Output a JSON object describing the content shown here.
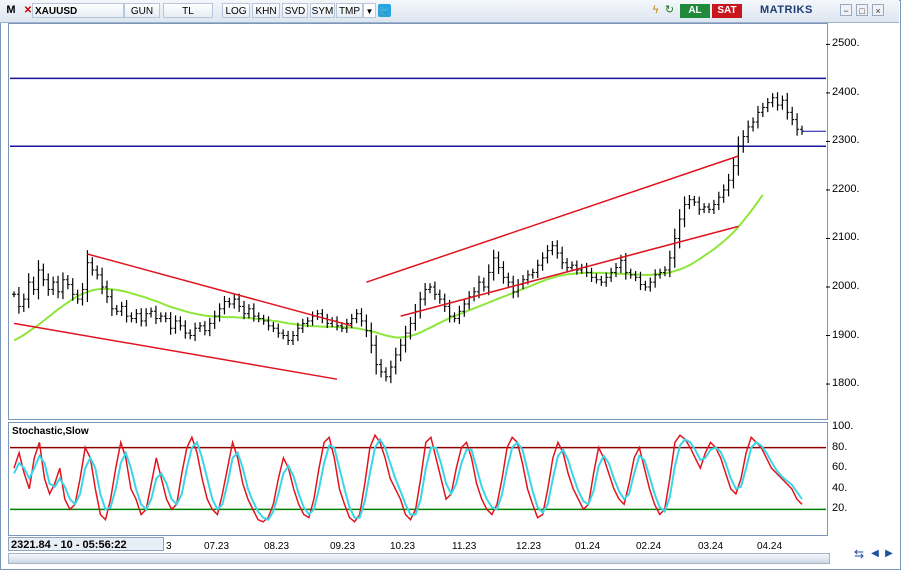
{
  "toolbar": {
    "menu_label": "M",
    "close_glyph": "✕",
    "symbol": "XAUUSD",
    "buttons": [
      "GUN",
      "TL",
      "LOG",
      "KHN",
      "SVD",
      "SYM",
      "TMP"
    ],
    "buy_label": "AL",
    "sell_label": "SAT",
    "brand": "MATRIKS",
    "window_controls": [
      "−",
      "□",
      "×"
    ],
    "icons": [
      "dropdown-icon",
      "twitter-icon",
      "lightning-icon",
      "refresh-icon"
    ]
  },
  "stochastic_title": "Stochastic,Slow",
  "status": {
    "price_readout": "2321.84 - 10 - 05:56:22"
  },
  "colors": {
    "candles": "#000000",
    "trend_red": "#e0141e",
    "horizontal_blue": "#1414a0",
    "moving_average": "#8ee63a",
    "stoch_k": "#e0141e",
    "stoch_d": "#3ad6e8",
    "stoch_upper": "#8b0000",
    "stoch_lower": "#008000",
    "buy": "#1f8a3a",
    "sell": "#c8161d"
  },
  "chart_data": {
    "type": "candlestick",
    "symbol": "XAUUSD",
    "x_labels": [
      "3",
      "07.23",
      "08.23",
      "09.23",
      "10.23",
      "11.23",
      "12.23",
      "01.24",
      "02.24",
      "03.24",
      "04.24"
    ],
    "price_axis": {
      "ticks": [
        1800,
        1900,
        2000,
        2100,
        2200,
        2300,
        2400,
        2500
      ],
      "tick_labels": [
        "1800.",
        "1900.",
        "2000.",
        "2100.",
        "2200.",
        "2300.",
        "2400.",
        "2500."
      ],
      "range": [
        1730,
        2540
      ]
    },
    "close_series": [
      1985,
      1960,
      1975,
      2010,
      1995,
      2035,
      2015,
      1995,
      2010,
      1990,
      2015,
      2005,
      1985,
      1975,
      1995,
      2050,
      2035,
      2025,
      2000,
      1980,
      1955,
      1950,
      1960,
      1940,
      1935,
      1945,
      1930,
      1945,
      1950,
      1935,
      1940,
      1935,
      1915,
      1930,
      1920,
      1905,
      1900,
      1915,
      1920,
      1910,
      1925,
      1940,
      1955,
      1970,
      1965,
      1975,
      1960,
      1945,
      1955,
      1940,
      1935,
      1930,
      1920,
      1915,
      1905,
      1900,
      1890,
      1900,
      1915,
      1925,
      1930,
      1940,
      1945,
      1935,
      1925,
      1930,
      1920,
      1915,
      1925,
      1935,
      1945,
      1930,
      1910,
      1880,
      1840,
      1825,
      1815,
      1835,
      1860,
      1880,
      1905,
      1925,
      1950,
      1975,
      1995,
      2000,
      1985,
      1975,
      1960,
      1940,
      1935,
      1950,
      1965,
      1980,
      1990,
      2010,
      2000,
      2030,
      2060,
      2040,
      2020,
      2010,
      1990,
      2005,
      2015,
      2025,
      2030,
      2045,
      2060,
      2075,
      2085,
      2070,
      2050,
      2040,
      2045,
      2035,
      2040,
      2030,
      2020,
      2015,
      2010,
      2020,
      2030,
      2040,
      2055,
      2030,
      2025,
      2020,
      2005,
      2000,
      2010,
      2025,
      2030,
      2035,
      2060,
      2100,
      2140,
      2170,
      2180,
      2175,
      2160,
      2165,
      2160,
      2170,
      2185,
      2200,
      2220,
      2250,
      2290,
      2310,
      2330,
      2340,
      2360,
      2370,
      2380,
      2390,
      2375,
      2385,
      2360,
      2345,
      2325,
      2321
    ],
    "horizontal_lines": [
      2430,
      2290
    ],
    "trendlines": [
      {
        "name": "falling-channel-upper",
        "points": [
          [
            15,
            2068
          ],
          [
            69,
            1920
          ]
        ]
      },
      {
        "name": "falling-channel-lower",
        "points": [
          [
            0,
            1925
          ],
          [
            66,
            1810
          ]
        ]
      },
      {
        "name": "rising-channel-upper",
        "points": [
          [
            72,
            2010
          ],
          [
            148,
            2270
          ]
        ]
      },
      {
        "name": "rising-channel-lower",
        "points": [
          [
            79,
            1940
          ],
          [
            148,
            2125
          ]
        ]
      }
    ],
    "moving_average": [
      1890,
      1895,
      1901,
      1908,
      1915,
      1922,
      1930,
      1938,
      1946,
      1954,
      1961,
      1968,
      1975,
      1981,
      1986,
      1990,
      1993,
      1995,
      1996,
      1996,
      1995,
      1994,
      1992,
      1990,
      1987,
      1984,
      1981,
      1978,
      1974,
      1971,
      1967,
      1963,
      1959,
      1956,
      1953,
      1950,
      1947,
      1945,
      1943,
      1941,
      1940,
      1939,
      1939,
      1938,
      1938,
      1938,
      1937,
      1937,
      1936,
      1935,
      1934,
      1933,
      1932,
      1930,
      1929,
      1927,
      1925,
      1924,
      1922,
      1921,
      1920,
      1919,
      1919,
      1918,
      1918,
      1918,
      1917,
      1917,
      1917,
      1916,
      1915,
      1913,
      1911,
      1909,
      1906,
      1903,
      1900,
      1898,
      1896,
      1896,
      1897,
      1899,
      1902,
      1906,
      1911,
      1916,
      1921,
      1926,
      1931,
      1936,
      1940,
      1944,
      1948,
      1952,
      1956,
      1960,
      1964,
      1968,
      1972,
      1976,
      1980,
      1984,
      1988,
      1992,
      1996,
      2000,
      2004,
      2008,
      2012,
      2016,
      2019,
      2022,
      2024,
      2026,
      2027,
      2028,
      2029,
      2029,
      2029,
      2029,
      2029,
      2029,
      2028,
      2028,
      2027,
      2027,
      2026,
      2026,
      2025,
      2025,
      2025,
      2026,
      2027,
      2028,
      2030,
      2033,
      2036,
      2040,
      2045,
      2051,
      2057,
      2064,
      2071,
      2078,
      2086,
      2094,
      2103,
      2113,
      2124,
      2136,
      2149,
      2162,
      2176,
      2190
    ],
    "stochastic": {
      "levels": {
        "upper": 80,
        "lower": 20
      },
      "tick_labels": [
        "100.",
        "80.",
        "60.",
        "40.",
        "20."
      ],
      "k": [
        60,
        75,
        55,
        40,
        70,
        85,
        50,
        35,
        45,
        60,
        30,
        20,
        25,
        50,
        80,
        70,
        40,
        15,
        10,
        30,
        60,
        85,
        70,
        40,
        30,
        15,
        20,
        45,
        70,
        50,
        30,
        20,
        25,
        55,
        80,
        90,
        75,
        50,
        30,
        20,
        15,
        35,
        60,
        85,
        70,
        45,
        30,
        20,
        10,
        8,
        12,
        25,
        50,
        70,
        60,
        40,
        25,
        15,
        12,
        30,
        60,
        85,
        90,
        70,
        40,
        25,
        12,
        8,
        15,
        45,
        80,
        92,
        85,
        70,
        50,
        40,
        30,
        15,
        10,
        20,
        50,
        85,
        90,
        70,
        50,
        30,
        35,
        60,
        80,
        85,
        70,
        45,
        30,
        20,
        15,
        25,
        50,
        80,
        90,
        85,
        65,
        40,
        25,
        12,
        15,
        40,
        70,
        85,
        75,
        55,
        40,
        30,
        20,
        25,
        55,
        80,
        70,
        55,
        40,
        30,
        25,
        45,
        70,
        80,
        60,
        40,
        25,
        15,
        20,
        50,
        85,
        92,
        88,
        80,
        70,
        60,
        75,
        85,
        80,
        70,
        55,
        40,
        35,
        50,
        75,
        90,
        85,
        80,
        70,
        60,
        55,
        50,
        45,
        40,
        30,
        25
      ],
      "d": [
        55,
        65,
        60,
        50,
        60,
        72,
        65,
        45,
        42,
        50,
        42,
        30,
        25,
        35,
        60,
        70,
        60,
        35,
        20,
        22,
        40,
        65,
        75,
        60,
        40,
        25,
        20,
        30,
        50,
        55,
        45,
        30,
        25,
        35,
        60,
        80,
        85,
        70,
        50,
        30,
        20,
        25,
        45,
        70,
        75,
        60,
        40,
        28,
        18,
        12,
        10,
        18,
        35,
        55,
        62,
        52,
        35,
        22,
        15,
        20,
        40,
        65,
        82,
        80,
        60,
        40,
        22,
        12,
        12,
        28,
        55,
        80,
        88,
        80,
        65,
        50,
        38,
        25,
        15,
        15,
        30,
        60,
        80,
        80,
        65,
        45,
        35,
        45,
        65,
        78,
        78,
        60,
        42,
        30,
        22,
        20,
        35,
        60,
        80,
        85,
        78,
        58,
        38,
        22,
        17,
        25,
        50,
        72,
        78,
        68,
        52,
        38,
        28,
        25,
        38,
        62,
        72,
        65,
        50,
        38,
        30,
        35,
        55,
        72,
        68,
        52,
        35,
        22,
        18,
        32,
        62,
        82,
        88,
        85,
        78,
        68,
        70,
        78,
        80,
        76,
        65,
        50,
        40,
        42,
        60,
        80,
        85,
        82,
        75,
        66,
        58,
        52,
        48,
        44,
        37,
        30
      ]
    }
  }
}
